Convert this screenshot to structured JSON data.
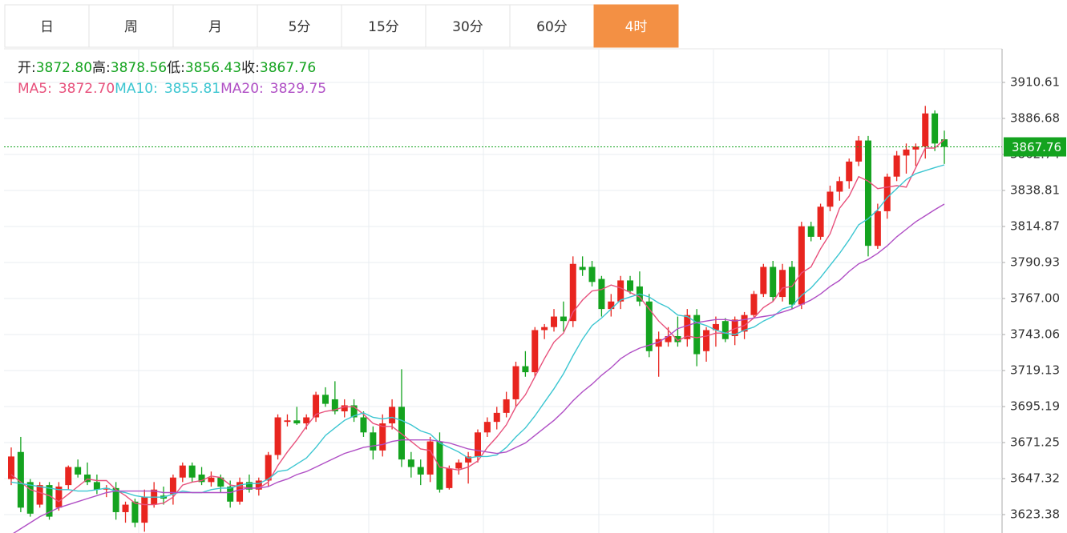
{
  "tabs": [
    "日",
    "周",
    "月",
    "5分",
    "15分",
    "30分",
    "60分",
    "4时"
  ],
  "active_tab": 7,
  "chart_data": {
    "type": "candlestick",
    "info": [
      {
        "label": "开:",
        "value": "3872.80"
      },
      {
        "label": "高:",
        "value": "3878.56"
      },
      {
        "label": "低:",
        "value": "3856.43"
      },
      {
        "label": "收:",
        "value": "3867.76"
      }
    ],
    "ma_info": [
      {
        "label": "MA5:",
        "value": "3872.70",
        "color": "#e8517c"
      },
      {
        "label": "MA10:",
        "value": "3855.81",
        "color": "#3cc6d1"
      },
      {
        "label": "MA20:",
        "value": "3829.75",
        "color": "#b04fc5"
      }
    ],
    "last_price": {
      "value": 3867.76,
      "label": "3867.76"
    },
    "up_color": "#e8251f",
    "down_color": "#14a31f",
    "last_color": "#14a31f",
    "ylim": [
      3611.15,
      3932.4
    ],
    "yticks": [
      3910.61,
      3886.68,
      3862.74,
      3838.81,
      3814.87,
      3790.93,
      {
        "value": 3767,
        "label": "3767.00"
      },
      3743.06,
      3719.13,
      3695.19,
      3671.25,
      3647.32,
      3623.38
    ],
    "grid": true,
    "candles": [
      [
        3647,
        3668,
        3643,
        3662
      ],
      [
        3665,
        3675,
        3625,
        3628
      ],
      [
        3645,
        3647,
        3622,
        3624
      ],
      [
        3630,
        3645,
        3628,
        3643
      ],
      [
        3643,
        3645,
        3620,
        3622
      ],
      [
        3628,
        3645,
        3626,
        3642
      ],
      [
        3643,
        3656,
        3640,
        3655
      ],
      [
        3655,
        3660,
        3648,
        3650
      ],
      [
        3650,
        3658,
        3643,
        3645
      ],
      [
        3645,
        3650,
        3637,
        3640
      ],
      [
        3640,
        3643,
        3635,
        3641
      ],
      [
        3641,
        3645,
        3620,
        3625
      ],
      [
        3625,
        3632,
        3618,
        3630
      ],
      [
        3632,
        3634,
        3615,
        3618
      ],
      [
        3618,
        3640,
        3612,
        3635
      ],
      [
        3630,
        3645,
        3628,
        3640
      ],
      [
        3636,
        3642,
        3630,
        3634
      ],
      [
        3637,
        3650,
        3630,
        3648
      ],
      [
        3648,
        3658,
        3645,
        3656
      ],
      [
        3656,
        3658,
        3645,
        3648
      ],
      [
        3650,
        3655,
        3643,
        3645
      ],
      [
        3645,
        3652,
        3642,
        3648
      ],
      [
        3648,
        3650,
        3638,
        3642
      ],
      [
        3642,
        3646,
        3628,
        3632
      ],
      [
        3632,
        3648,
        3630,
        3645
      ],
      [
        3645,
        3650,
        3638,
        3640
      ],
      [
        3640,
        3648,
        3636,
        3646
      ],
      [
        3646,
        3665,
        3642,
        3663
      ],
      [
        3663,
        3690,
        3660,
        3688
      ],
      [
        3685,
        3690,
        3682,
        3686
      ],
      [
        3686,
        3695,
        3683,
        3684
      ],
      [
        3684,
        3690,
        3680,
        3688
      ],
      [
        3688,
        3705,
        3685,
        3703
      ],
      [
        3703,
        3708,
        3695,
        3697
      ],
      [
        3700,
        3712,
        3690,
        3692
      ],
      [
        3692,
        3700,
        3688,
        3696
      ],
      [
        3696,
        3700,
        3685,
        3688
      ],
      [
        3688,
        3692,
        3675,
        3678
      ],
      [
        3678,
        3682,
        3660,
        3666
      ],
      [
        3666,
        3690,
        3662,
        3684
      ],
      [
        3684,
        3700,
        3680,
        3695
      ],
      [
        3695,
        3720,
        3655,
        3660
      ],
      [
        3660,
        3665,
        3648,
        3655
      ],
      [
        3655,
        3660,
        3643,
        3650
      ],
      [
        3650,
        3675,
        3645,
        3672
      ],
      [
        3672,
        3678,
        3638,
        3640
      ],
      [
        3641,
        3656,
        3640,
        3654
      ],
      [
        3654,
        3660,
        3650,
        3658
      ],
      [
        3658,
        3665,
        3644,
        3662
      ],
      [
        3662,
        3680,
        3658,
        3678
      ],
      [
        3678,
        3688,
        3675,
        3685
      ],
      [
        3685,
        3695,
        3680,
        3691
      ],
      [
        3691,
        3705,
        3688,
        3700
      ],
      [
        3700,
        3725,
        3695,
        3722
      ],
      [
        3722,
        3732,
        3715,
        3718
      ],
      [
        3718,
        3748,
        3715,
        3746
      ],
      [
        3746,
        3750,
        3740,
        3748
      ],
      [
        3748,
        3760,
        3745,
        3755
      ],
      [
        3755,
        3765,
        3745,
        3752
      ],
      [
        3752,
        3795,
        3748,
        3790
      ],
      [
        3788,
        3795,
        3782,
        3786
      ],
      [
        3788,
        3792,
        3775,
        3778
      ],
      [
        3780,
        3782,
        3755,
        3760
      ],
      [
        3760,
        3770,
        3755,
        3765
      ],
      [
        3765,
        3782,
        3760,
        3779
      ],
      [
        3779,
        3782,
        3770,
        3772
      ],
      [
        3775,
        3785,
        3762,
        3765
      ],
      [
        3765,
        3770,
        3728,
        3732
      ],
      [
        3735,
        3745,
        3715,
        3740
      ],
      [
        3738,
        3748,
        3735,
        3742
      ],
      [
        3742,
        3755,
        3735,
        3738
      ],
      [
        3740,
        3760,
        3735,
        3756
      ],
      [
        3756,
        3760,
        3722,
        3730
      ],
      [
        3732,
        3748,
        3725,
        3746
      ],
      [
        3746,
        3755,
        3735,
        3750
      ],
      [
        3752,
        3754,
        3738,
        3740
      ],
      [
        3742,
        3755,
        3736,
        3753
      ],
      [
        3745,
        3758,
        3740,
        3756
      ],
      [
        3756,
        3772,
        3754,
        3770
      ],
      [
        3770,
        3790,
        3768,
        3788
      ],
      [
        3788,
        3792,
        3765,
        3768
      ],
      [
        3768,
        3790,
        3765,
        3786
      ],
      [
        3788,
        3792,
        3760,
        3763
      ],
      [
        3763,
        3818,
        3760,
        3815
      ],
      [
        3815,
        3818,
        3805,
        3808
      ],
      [
        3808,
        3830,
        3806,
        3828
      ],
      [
        3828,
        3842,
        3825,
        3838
      ],
      [
        3838,
        3848,
        3832,
        3845
      ],
      [
        3845,
        3860,
        3840,
        3858
      ],
      [
        3858,
        3875,
        3855,
        3872
      ],
      [
        3872,
        3875,
        3795,
        3802
      ],
      [
        3802,
        3830,
        3800,
        3825
      ],
      [
        3825,
        3850,
        3820,
        3848
      ],
      [
        3848,
        3865,
        3845,
        3862
      ],
      [
        3862,
        3870,
        3850,
        3866
      ],
      [
        3866,
        3870,
        3855,
        3868
      ],
      [
        3868,
        3895,
        3860,
        3890
      ],
      [
        3890,
        3892,
        3865,
        3870
      ],
      [
        3872.8,
        3878.56,
        3856.43,
        3867.76
      ]
    ],
    "series": [
      {
        "name": "MA5",
        "color": "#e8517c",
        "values": [
          3650,
          3645,
          3640,
          3638,
          3636,
          3632,
          3637,
          3642,
          3647,
          3646,
          3646,
          3640,
          3636,
          3631,
          3630,
          3630,
          3631,
          3635,
          3643,
          3645,
          3646,
          3649,
          3648,
          3643,
          3642,
          3641,
          3641,
          3645,
          3656,
          3665,
          3673,
          3682,
          3690,
          3692,
          3693,
          3695,
          3695,
          3690,
          3684,
          3682,
          3682,
          3677,
          3672,
          3667,
          3666,
          3655,
          3654,
          3653,
          3655,
          3659,
          3668,
          3675,
          3683,
          3695,
          3703,
          3715,
          3727,
          3738,
          3744,
          3758,
          3766,
          3772,
          3773,
          3776,
          3774,
          3771,
          3768,
          3760,
          3752,
          3746,
          3739,
          3742,
          3741,
          3742,
          3744,
          3744,
          3747,
          3749,
          3754,
          3761,
          3765,
          3774,
          3775,
          3784,
          3788,
          3800,
          3810,
          3827,
          3835,
          3848,
          3845,
          3840,
          3841,
          3842,
          3841,
          3854,
          3867,
          3867,
          3872.7
        ]
      },
      {
        "name": "MA10",
        "color": "#3cc6d1",
        "values": [
          3645,
          3644,
          3643,
          3642,
          3641,
          3640,
          3640,
          3639,
          3639,
          3640,
          3641,
          3639,
          3638,
          3636,
          3635,
          3635,
          3635,
          3637,
          3639,
          3638,
          3638,
          3640,
          3641,
          3641,
          3643,
          3644,
          3644,
          3647,
          3652,
          3653,
          3657,
          3661,
          3668,
          3676,
          3681,
          3686,
          3689,
          3691,
          3688,
          3687,
          3688,
          3686,
          3683,
          3679,
          3677,
          3671,
          3668,
          3665,
          3661,
          3662,
          3662,
          3663,
          3668,
          3675,
          3681,
          3689,
          3698,
          3707,
          3717,
          3729,
          3740,
          3749,
          3754,
          3760,
          3766,
          3768,
          3770,
          3768,
          3764,
          3761,
          3756,
          3755,
          3751,
          3749,
          3746,
          3744,
          3743,
          3746,
          3748,
          3752,
          3755,
          3760,
          3762,
          3769,
          3774,
          3781,
          3789,
          3797,
          3806,
          3816,
          3820,
          3826,
          3834,
          3840,
          3846,
          3850,
          3852,
          3854,
          3855.81
        ]
      },
      {
        "name": "MA20",
        "color": "#b04fc5",
        "values": [
          3610,
          3614,
          3618,
          3622,
          3625,
          3628,
          3630,
          3632,
          3634,
          3636,
          3638,
          3639,
          3639,
          3639,
          3639,
          3639,
          3638,
          3638,
          3638,
          3638,
          3638,
          3638,
          3638,
          3638,
          3640,
          3641,
          3641,
          3642,
          3645,
          3647,
          3650,
          3652,
          3655,
          3658,
          3661,
          3664,
          3666,
          3668,
          3669,
          3670,
          3672,
          3673,
          3673,
          3673,
          3673,
          3672,
          3671,
          3669,
          3667,
          3666,
          3665,
          3664,
          3665,
          3668,
          3671,
          3676,
          3681,
          3686,
          3692,
          3699,
          3705,
          3710,
          3716,
          3721,
          3727,
          3731,
          3734,
          3736,
          3738,
          3742,
          3747,
          3749,
          3751,
          3752,
          3753,
          3753,
          3752,
          3753,
          3754,
          3755,
          3756,
          3758,
          3760,
          3763,
          3766,
          3770,
          3775,
          3779,
          3785,
          3790,
          3793,
          3797,
          3802,
          3808,
          3813,
          3818,
          3822,
          3826,
          3829.75
        ]
      }
    ]
  }
}
